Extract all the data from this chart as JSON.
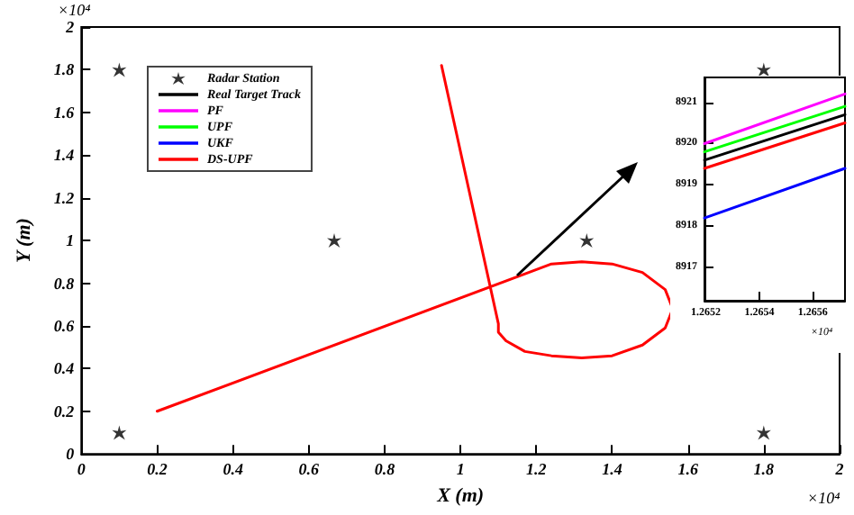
{
  "chart_data": [
    {
      "type": "line",
      "xlabel": "X (m)",
      "ylabel": "Y (m)",
      "annotations": [
        "×10⁴",
        "×10⁴"
      ],
      "xlim": [
        0,
        2
      ],
      "ylim": [
        0,
        2
      ],
      "xticks": [
        0,
        0.2,
        0.4,
        0.6,
        0.8,
        1,
        1.2,
        1.4,
        1.6,
        1.8,
        2
      ],
      "yticks": [
        0,
        0.2,
        0.4,
        0.6,
        0.8,
        1,
        1.2,
        1.4,
        1.6,
        1.8,
        2
      ],
      "grid": false,
      "legend": "top left",
      "line_style": "solid",
      "series": [
        {
          "name": "Radar Station",
          "type": "scatter",
          "marker": "star",
          "color": "#000000",
          "x": [
            0.1,
            0.1,
            0.667,
            1.333,
            1.8,
            1.8
          ],
          "values": [
            1.8,
            0.1,
            1,
            1,
            1.8,
            0.1
          ]
        },
        {
          "name": "Real Target Track",
          "color": "#000000"
        },
        {
          "name": "PF",
          "color": "#ff00ff"
        },
        {
          "name": "UPF",
          "color": "#00ff00"
        },
        {
          "name": "UKF",
          "color": "#0000ff"
        },
        {
          "name": "DS-UPF",
          "color": "#ff0000",
          "x": [
            0.2,
            1.18,
            1.24,
            1.32,
            1.4,
            1.48,
            1.54,
            1.56,
            1.54,
            1.48,
            1.4,
            1.32,
            1.24,
            1.17,
            1.12,
            1.1,
            1.1,
            0.95
          ],
          "values": [
            0.2,
            0.85,
            0.89,
            0.9,
            0.89,
            0.85,
            0.77,
            0.68,
            0.59,
            0.51,
            0.46,
            0.45,
            0.46,
            0.48,
            0.53,
            0.57,
            0.61,
            1.82
          ]
        }
      ]
    },
    {
      "type": "line",
      "annotations": [
        "×10⁴"
      ],
      "xlim": [
        1.265195,
        1.26572
      ],
      "ylim": [
        8916.2,
        8921.6
      ],
      "xticks": [
        1.2652,
        1.2654,
        1.2656
      ],
      "yticks": [
        8917,
        8918,
        8919,
        8920,
        8921
      ],
      "grid": false,
      "legend": false,
      "line_style": "solid",
      "series": [
        {
          "color": "#0000ff",
          "x": [
            1.265195,
            1.26572
          ],
          "values": [
            8918.2,
            8919.4
          ]
        },
        {
          "color": "#ff0000",
          "x": [
            1.265195,
            1.26572
          ],
          "values": [
            8919.4,
            8920.5
          ]
        },
        {
          "color": "#000000",
          "x": [
            1.265195,
            1.26572
          ],
          "values": [
            8919.6,
            8920.7
          ]
        },
        {
          "color": "#00ff00",
          "x": [
            1.265195,
            1.26572
          ],
          "values": [
            8919.8,
            8920.9
          ]
        },
        {
          "color": "#ff00ff",
          "x": [
            1.265195,
            1.26572
          ],
          "values": [
            8920,
            8921.2
          ]
        }
      ]
    }
  ]
}
